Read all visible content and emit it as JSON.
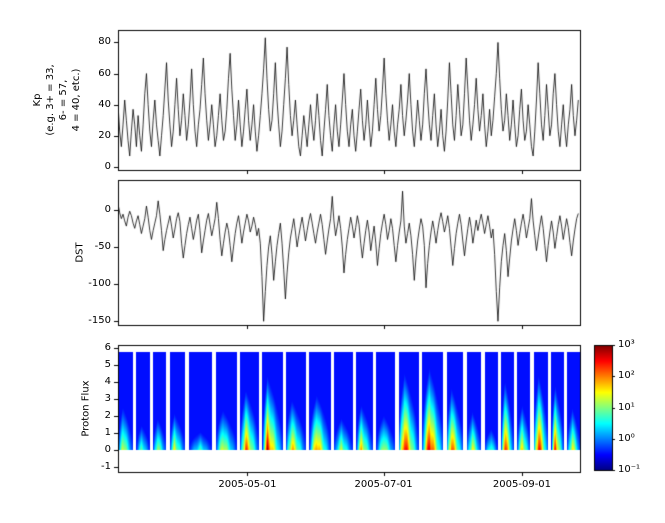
{
  "x_axis": {
    "tick_labels": [
      "2005-05-01",
      "2005-07-01",
      "2005-09-01"
    ],
    "tick_days": [
      58,
      119,
      181
    ],
    "total_days": 207
  },
  "chart_data": [
    {
      "type": "line",
      "name": "kp-index",
      "ylabel_lines": [
        "Kp",
        "(e.g. 3+ = 33,",
        "6- = 57,",
        "4 = 40, etc.)"
      ],
      "ylim": [
        -2,
        88
      ],
      "yticks": [
        0,
        20,
        40,
        60,
        80
      ],
      "x_day_step": 0.75,
      "line_color": "#000000",
      "series": [
        {
          "name": "Kp",
          "values": [
            40,
            23,
            13,
            27,
            43,
            30,
            17,
            7,
            23,
            37,
            27,
            13,
            33,
            20,
            10,
            27,
            47,
            60,
            40,
            23,
            13,
            30,
            43,
            27,
            17,
            7,
            20,
            33,
            50,
            67,
            43,
            27,
            13,
            23,
            40,
            57,
            37,
            20,
            30,
            47,
            33,
            17,
            27,
            43,
            63,
            40,
            23,
            13,
            27,
            37,
            53,
            70,
            47,
            30,
            17,
            27,
            40,
            27,
            13,
            20,
            33,
            47,
            30,
            17,
            23,
            37,
            57,
            73,
            50,
            33,
            17,
            27,
            43,
            27,
            13,
            23,
            37,
            50,
            30,
            17,
            27,
            40,
            23,
            10,
            20,
            33,
            47,
            63,
            83,
            57,
            37,
            23,
            30,
            47,
            67,
            43,
            27,
            13,
            23,
            40,
            57,
            77,
            53,
            33,
            20,
            30,
            43,
            27,
            13,
            7,
            20,
            33,
            23,
            13,
            27,
            40,
            27,
            17,
            30,
            47,
            33,
            17,
            7,
            23,
            37,
            53,
            33,
            20,
            10,
            27,
            40,
            23,
            13,
            27,
            43,
            60,
            40,
            23,
            13,
            27,
            37,
            20,
            10,
            23,
            37,
            50,
            30,
            17,
            27,
            43,
            27,
            13,
            23,
            40,
            57,
            37,
            23,
            33,
            50,
            70,
            47,
            30,
            17,
            27,
            40,
            23,
            13,
            27,
            37,
            53,
            33,
            20,
            30,
            43,
            60,
            40,
            23,
            13,
            27,
            43,
            30,
            17,
            27,
            47,
            63,
            43,
            27,
            17,
            33,
            47,
            27,
            13,
            23,
            37,
            20,
            10,
            23,
            43,
            67,
            47,
            27,
            17,
            33,
            53,
            37,
            20,
            27,
            47,
            70,
            50,
            30,
            17,
            27,
            40,
            57,
            37,
            23,
            33,
            47,
            27,
            13,
            23,
            37,
            20,
            30,
            45,
            60,
            80,
            57,
            37,
            23,
            30,
            47,
            33,
            17,
            27,
            43,
            27,
            13,
            20,
            37,
            50,
            30,
            17,
            23,
            40,
            27,
            13,
            7,
            23,
            43,
            67,
            47,
            27,
            17,
            33,
            53,
            37,
            20,
            27,
            47,
            60,
            40,
            23,
            13,
            27,
            40,
            23,
            13,
            27,
            37,
            53,
            33,
            20,
            30,
            43
          ]
        }
      ]
    },
    {
      "type": "line",
      "name": "dst-index",
      "ylabel": "DST",
      "ylim": [
        -155,
        40
      ],
      "yticks": [
        0,
        -50,
        -100,
        -150
      ],
      "x_day_step": 0.75,
      "line_color": "#000000",
      "series": [
        {
          "name": "DST",
          "values": [
            8,
            -4,
            -12,
            -6,
            -15,
            -22,
            -10,
            -2,
            -8,
            -18,
            -25,
            -15,
            -8,
            -20,
            -32,
            -22,
            -12,
            5,
            -10,
            -28,
            -40,
            -28,
            -18,
            -8,
            12,
            -6,
            -28,
            -55,
            -40,
            -28,
            -18,
            -8,
            -22,
            -38,
            -26,
            -12,
            -4,
            -16,
            -45,
            -65,
            -48,
            -32,
            -20,
            -10,
            -25,
            -40,
            -28,
            -14,
            -6,
            -28,
            -58,
            -42,
            -28,
            -14,
            -5,
            -20,
            -35,
            -24,
            -12,
            10,
            -12,
            -40,
            -62,
            -45,
            -30,
            -18,
            -28,
            -48,
            -70,
            -50,
            -32,
            -18,
            -8,
            -25,
            -45,
            -30,
            -18,
            -6,
            -15,
            -30,
            -22,
            -10,
            -20,
            -35,
            -25,
            -45,
            -90,
            -150,
            -110,
            -75,
            -50,
            -35,
            -60,
            -95,
            -70,
            -48,
            -32,
            -18,
            -45,
            -80,
            -120,
            -85,
            -58,
            -38,
            -25,
            -12,
            -30,
            -50,
            -35,
            -22,
            -10,
            -25,
            -42,
            -28,
            -15,
            -5,
            -18,
            -32,
            -45,
            -30,
            -18,
            -6,
            -20,
            -40,
            -60,
            -42,
            -26,
            -12,
            18,
            -15,
            -35,
            -22,
            -8,
            -25,
            -50,
            -85,
            -60,
            -40,
            -25,
            -10,
            -22,
            -38,
            -24,
            -8,
            -20,
            -45,
            -65,
            -45,
            -28,
            -14,
            -30,
            -55,
            -38,
            -22,
            -45,
            -75,
            -52,
            -32,
            -18,
            -6,
            -20,
            -40,
            -28,
            -12,
            -25,
            -48,
            -70,
            -48,
            -30,
            -15,
            25,
            -22,
            -45,
            -32,
            -18,
            -35,
            -60,
            -95,
            -65,
            -42,
            -26,
            -12,
            -22,
            -48,
            -105,
            -72,
            -48,
            -30,
            -15,
            -28,
            -45,
            -28,
            -14,
            -4,
            -16,
            -30,
            -20,
            -8,
            -25,
            -50,
            -75,
            -52,
            -32,
            -18,
            -6,
            -20,
            -42,
            -62,
            -42,
            -25,
            -10,
            -24,
            -45,
            -30,
            -14,
            -28,
            -16,
            -6,
            -18,
            -32,
            -20,
            -8,
            -22,
            -38,
            -26,
            -60,
            -110,
            -150,
            -105,
            -70,
            -48,
            -32,
            -55,
            -90,
            -65,
            -42,
            -26,
            -12,
            -28,
            -48,
            -32,
            -18,
            -6,
            -20,
            -38,
            -25,
            -12,
            15,
            -15,
            -35,
            -55,
            -38,
            -22,
            -8,
            -25,
            -48,
            -70,
            -48,
            -30,
            -15,
            -30,
            -52,
            -36,
            -20,
            -8,
            -22,
            -40,
            -26,
            -12,
            -24,
            -44,
            -62,
            -42,
            -26,
            -12,
            -5
          ]
        }
      ]
    },
    {
      "type": "heatmap",
      "name": "proton-flux",
      "ylabel": "Proton Flux",
      "ylim": [
        -1.3,
        6.2
      ],
      "yticks": [
        -1,
        0,
        1,
        2,
        3,
        4,
        5,
        6
      ],
      "heat_y_range": [
        0,
        5.8
      ],
      "log_range": [
        -1,
        3
      ],
      "background_log": -0.45,
      "colormap": "jet",
      "segments": [
        {
          "d0": 0,
          "d1": 6.5,
          "peak": 1.8,
          "h": 2.6,
          "pos": 0.3
        },
        {
          "d0": 8,
          "d1": 14,
          "peak": 1.1,
          "h": 1.5,
          "pos": 0.4
        },
        {
          "d0": 15.5,
          "d1": 21.5,
          "peak": 1.5,
          "h": 1.9,
          "pos": 0.35
        },
        {
          "d0": 23,
          "d1": 30,
          "peak": 1.7,
          "h": 2.2,
          "pos": 0.3
        },
        {
          "d0": 31.5,
          "d1": 42,
          "peak": 0.9,
          "h": 1.1,
          "pos": 0.5
        },
        {
          "d0": 43.5,
          "d1": 53,
          "peak": 1.8,
          "h": 2.4,
          "pos": 0.35
        },
        {
          "d0": 54.5,
          "d1": 63,
          "peak": 2.6,
          "h": 3.6,
          "pos": 0.3
        },
        {
          "d0": 64.5,
          "d1": 73.5,
          "peak": 3.0,
          "h": 4.4,
          "pos": 0.25
        },
        {
          "d0": 75,
          "d1": 84,
          "peak": 2.2,
          "h": 3.0,
          "pos": 0.3
        },
        {
          "d0": 85.5,
          "d1": 95,
          "peak": 2.5,
          "h": 3.3,
          "pos": 0.35
        },
        {
          "d0": 96.5,
          "d1": 105,
          "peak": 1.5,
          "h": 1.9,
          "pos": 0.4
        },
        {
          "d0": 106.5,
          "d1": 114,
          "peak": 2.1,
          "h": 2.7,
          "pos": 0.3
        },
        {
          "d0": 115.5,
          "d1": 124,
          "peak": 1.6,
          "h": 2.1,
          "pos": 0.4
        },
        {
          "d0": 125.5,
          "d1": 134.5,
          "peak": 3.1,
          "h": 4.6,
          "pos": 0.3
        },
        {
          "d0": 136,
          "d1": 145.5,
          "peak": 3.2,
          "h": 4.9,
          "pos": 0.35
        },
        {
          "d0": 147,
          "d1": 154.5,
          "peak": 2.7,
          "h": 3.7,
          "pos": 0.3
        },
        {
          "d0": 156,
          "d1": 162.5,
          "peak": 1.8,
          "h": 2.3,
          "pos": 0.4
        },
        {
          "d0": 164,
          "d1": 170,
          "peak": 1.1,
          "h": 1.3,
          "pos": 0.5
        },
        {
          "d0": 171.5,
          "d1": 177,
          "peak": 3.0,
          "h": 4.2,
          "pos": 0.3
        },
        {
          "d0": 178.5,
          "d1": 184.5,
          "peak": 2.0,
          "h": 2.7,
          "pos": 0.4
        },
        {
          "d0": 186,
          "d1": 192.5,
          "peak": 3.1,
          "h": 4.5,
          "pos": 0.35
        },
        {
          "d0": 194,
          "d1": 199.5,
          "peak": 2.8,
          "h": 3.9,
          "pos": 0.3
        },
        {
          "d0": 201,
          "d1": 207,
          "peak": 1.9,
          "h": 2.5,
          "pos": 0.4
        }
      ],
      "colorbar": {
        "tick_labels": [
          "10³",
          "10²",
          "10¹",
          "10⁰",
          "10⁻¹"
        ],
        "tick_logs": [
          3,
          2,
          1,
          0,
          -1
        ]
      }
    }
  ]
}
